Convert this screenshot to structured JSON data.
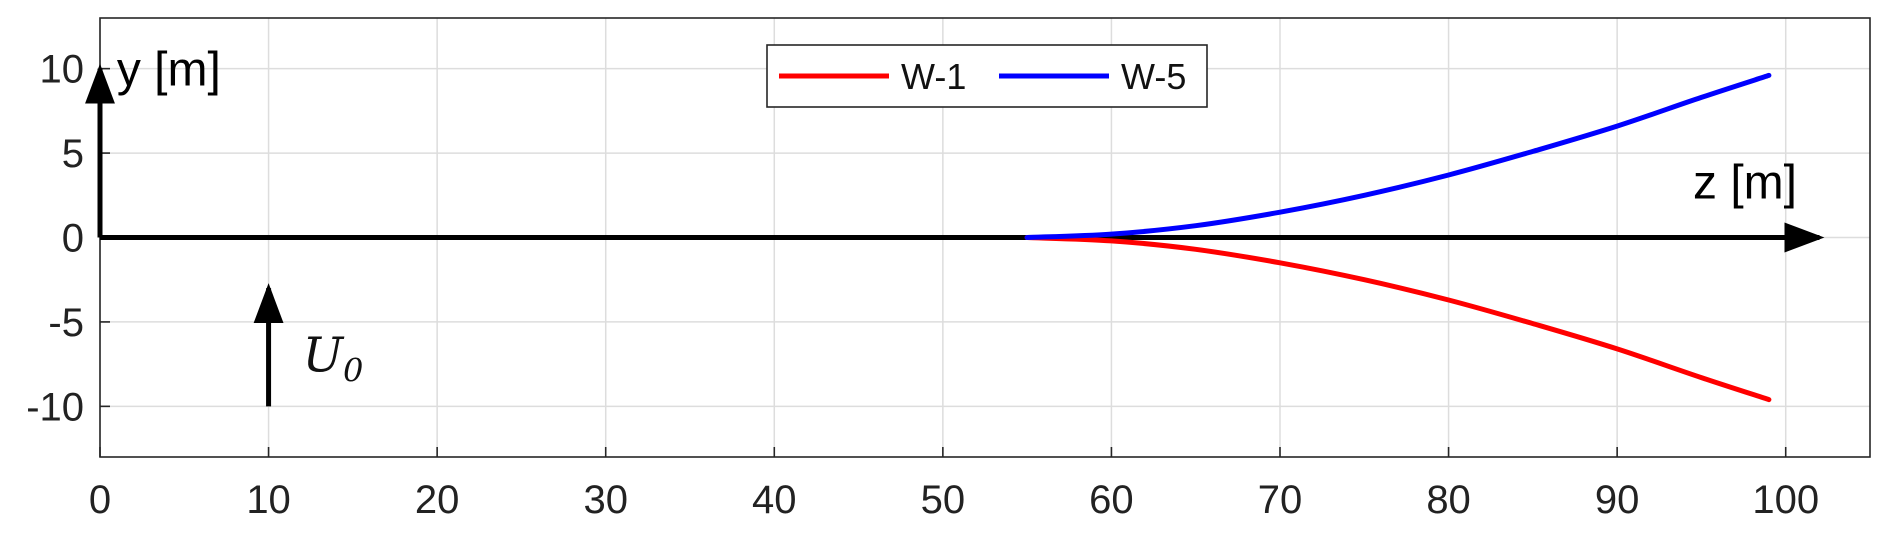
{
  "chart_data": {
    "type": "line",
    "xlim": [
      0,
      105
    ],
    "ylim": [
      -13,
      13
    ],
    "x_ticks": [
      0,
      10,
      20,
      30,
      40,
      50,
      60,
      70,
      80,
      90,
      100
    ],
    "x_tick_labels": [
      "0",
      "10",
      "20",
      "30",
      "40",
      "50",
      "60",
      "70",
      "80",
      "90",
      "100"
    ],
    "y_ticks": [
      -10,
      -5,
      0,
      5,
      10
    ],
    "y_tick_labels": [
      "-10",
      "-5",
      "0",
      "5",
      "10"
    ],
    "xlabel": "z [m]",
    "ylabel": "y [m]",
    "grid": true,
    "legend_position": "top-center",
    "series": [
      {
        "name": "W-1",
        "color": "#ff0000",
        "x": [
          55,
          60,
          65,
          70,
          75,
          80,
          85,
          90,
          95,
          99
        ],
        "y": [
          0,
          -0.2,
          -0.7,
          -1.5,
          -2.5,
          -3.7,
          -5.1,
          -6.6,
          -8.3,
          -9.6
        ]
      },
      {
        "name": "W-5",
        "color": "#0000ff",
        "x": [
          55,
          60,
          65,
          70,
          75,
          80,
          85,
          90,
          95,
          99
        ],
        "y": [
          0,
          0.2,
          0.7,
          1.5,
          2.5,
          3.7,
          5.1,
          6.6,
          8.3,
          9.6
        ]
      }
    ],
    "annotations": [
      {
        "type": "arrow",
        "name": "y-axis-arrow",
        "from": [
          0,
          0
        ],
        "to": [
          0,
          10
        ]
      },
      {
        "type": "arrow",
        "name": "z-axis-arrow",
        "from": [
          0,
          0
        ],
        "to": [
          102,
          0
        ]
      },
      {
        "type": "arrow",
        "name": "u0-arrow",
        "from": [
          10,
          -10
        ],
        "to": [
          10,
          -3
        ],
        "label_main": "U",
        "label_sub": "0"
      }
    ]
  }
}
